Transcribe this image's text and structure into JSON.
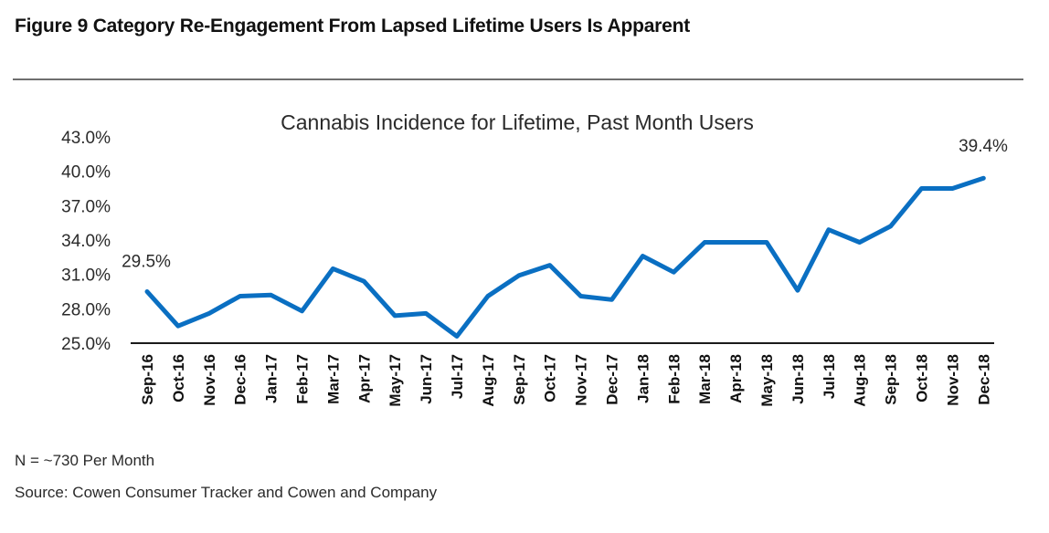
{
  "figure": {
    "title": "Figure 9 Category Re-Engagement From Lapsed Lifetime Users Is Apparent"
  },
  "notes": {
    "sample": "N = ~730 Per Month",
    "source": "Source: Cowen Consumer Tracker and Cowen and Company"
  },
  "chart_data": {
    "type": "line",
    "title": "Cannabis Incidence for Lifetime, Past Month Users",
    "xlabel": "",
    "ylabel": "",
    "categories": [
      "Sep-16",
      "Oct-16",
      "Nov-16",
      "Dec-16",
      "Jan-17",
      "Feb-17",
      "Mar-17",
      "Apr-17",
      "May-17",
      "Jun-17",
      "Jul-17",
      "Aug-17",
      "Sep-17",
      "Oct-17",
      "Nov-17",
      "Dec-17",
      "Jan-18",
      "Feb-18",
      "Mar-18",
      "Apr-18",
      "May-18",
      "Jun-18",
      "Jul-18",
      "Aug-18",
      "Sep-18",
      "Oct-18",
      "Nov-18",
      "Dec-18"
    ],
    "series": [
      {
        "name": "Cannabis Incidence",
        "color": "#0a6fc2",
        "values": [
          29.5,
          26.5,
          27.6,
          29.1,
          29.2,
          27.8,
          31.5,
          30.4,
          27.4,
          27.6,
          25.6,
          29.1,
          30.9,
          31.8,
          29.1,
          28.8,
          32.6,
          31.2,
          33.8,
          33.8,
          33.8,
          29.6,
          34.9,
          33.8,
          35.2,
          38.5,
          38.5,
          39.4
        ]
      }
    ],
    "ylim": [
      25.0,
      43.0
    ],
    "yticks": [
      25.0,
      28.0,
      31.0,
      34.0,
      37.0,
      40.0,
      43.0
    ],
    "ytick_labels": [
      "25.0%",
      "28.0%",
      "31.0%",
      "34.0%",
      "37.0%",
      "40.0%",
      "43.0%"
    ],
    "annotations": [
      {
        "index": 0,
        "text": "29.5%"
      },
      {
        "index": 27,
        "text": "39.4%"
      }
    ],
    "grid": false,
    "legend": "none"
  }
}
